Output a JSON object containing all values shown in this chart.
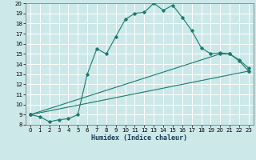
{
  "xlabel": "Humidex (Indice chaleur)",
  "xlim": [
    -0.5,
    23.5
  ],
  "ylim": [
    8,
    20
  ],
  "yticks": [
    8,
    9,
    10,
    11,
    12,
    13,
    14,
    15,
    16,
    17,
    18,
    19,
    20
  ],
  "xticks": [
    0,
    1,
    2,
    3,
    4,
    5,
    6,
    7,
    8,
    9,
    10,
    11,
    12,
    13,
    14,
    15,
    16,
    17,
    18,
    19,
    20,
    21,
    22,
    23
  ],
  "bg_color": "#cce8e8",
  "line_color": "#1a7a6e",
  "grid_color": "#ffffff",
  "line1_x": [
    0,
    1,
    2,
    3,
    4,
    5,
    6,
    7,
    8,
    9,
    10,
    11,
    12,
    13,
    14,
    15,
    16,
    17,
    18,
    19,
    20,
    21,
    22,
    23
  ],
  "line1_y": [
    9.0,
    8.8,
    8.3,
    8.5,
    8.6,
    9.0,
    13.0,
    15.5,
    15.0,
    16.7,
    18.4,
    19.0,
    19.1,
    20.0,
    19.3,
    19.8,
    18.6,
    17.3,
    15.6,
    15.0,
    15.1,
    15.0,
    14.3,
    13.3
  ],
  "line2_x": [
    0,
    23
  ],
  "line2_y": [
    9.0,
    13.3
  ],
  "line3_x": [
    0,
    20,
    21,
    22,
    23
  ],
  "line3_y": [
    9.0,
    15.0,
    15.0,
    14.4,
    13.6
  ]
}
